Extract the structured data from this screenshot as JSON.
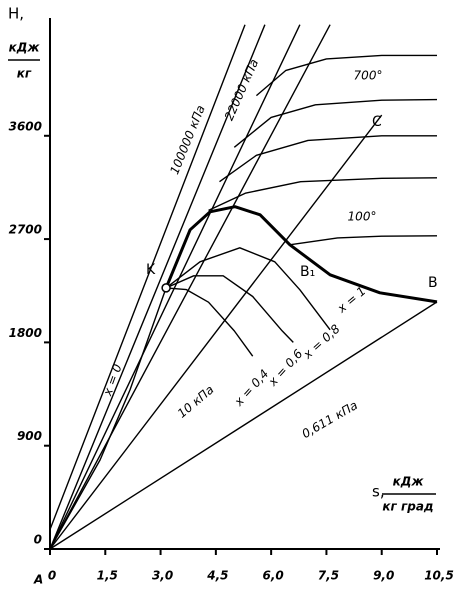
{
  "chart_data": {
    "type": "line",
    "y_label": "H,",
    "y_unit_top": "кДж",
    "y_unit_bottom": "кг",
    "x_label": "s,",
    "x_unit_top": "кДж",
    "x_unit_bottom": "кг град",
    "origin_label": "A",
    "xlim": [
      0,
      10.5
    ],
    "ylim": [
      0,
      4600
    ],
    "xticks": [
      0,
      {
        "value": 1.5,
        "label": "1,5"
      },
      {
        "value": 3.0,
        "label": "3,0"
      },
      {
        "value": 4.5,
        "label": "4,5"
      },
      {
        "value": 6.0,
        "label": "6,0"
      },
      {
        "value": 7.5,
        "label": "7,5"
      },
      {
        "value": 9.0,
        "label": "9,0"
      },
      {
        "value": 10.5,
        "label": "10,5"
      }
    ],
    "yticks": [
      0,
      900,
      1800,
      2700,
      3600
    ],
    "series": [
      {
        "name": "x = 0",
        "color": "#000",
        "x": [
          0,
          1.36,
          2.17,
          3.15
        ],
        "values": [
          0,
          776,
          1386,
          2275
        ]
      },
      {
        "name": "x = 1",
        "color": "#000",
        "x": [
          3.15,
          3.8,
          4.34,
          5.02,
          5.7,
          6.51,
          7.6,
          8.95,
          10.5
        ],
        "values": [
          2275,
          2781,
          2938,
          2982,
          2912,
          2650,
          2389,
          2232,
          2153
        ]
      },
      {
        "name": "x = 0,8",
        "color": "#000",
        "x": [
          3.15,
          4.07,
          5.15,
          6.1,
          6.78,
          7.6
        ],
        "values": [
          2275,
          2502,
          2624,
          2502,
          2258,
          1910
        ]
      },
      {
        "name": "x = 0,6",
        "color": "#000",
        "x": [
          3.15,
          3.9,
          4.7,
          5.5,
          6.3,
          6.6
        ],
        "values": [
          2275,
          2380,
          2380,
          2200,
          1900,
          1800
        ]
      },
      {
        "name": "x = 0,4",
        "color": "#000",
        "x": [
          3.15,
          3.7,
          4.3,
          5.0,
          5.5
        ],
        "values": [
          2275,
          2260,
          2150,
          1900,
          1680
        ]
      },
      {
        "name": "100000 кПа",
        "color": "#000",
        "x": [
          0,
          5.29
        ],
        "values": [
          170,
          4568
        ]
      },
      {
        "name": "22000 кПа",
        "color": "#000",
        "x": [
          0,
          5.83
        ],
        "values": [
          0,
          4568
        ]
      },
      {
        "color": "#000",
        "x": [
          0,
          6.78
        ],
        "values": [
          0,
          4568
        ]
      },
      {
        "color": "#000",
        "x": [
          0,
          7.6
        ],
        "values": [
          0,
          4568
        ]
      },
      {
        "name": "10 кПа",
        "color": "#000",
        "x": [
          0,
          9.0
        ],
        "values": [
          0,
          3780
        ]
      },
      {
        "name": "0,611 кПа",
        "color": "#000",
        "x": [
          0,
          10.5
        ],
        "values": [
          0,
          2153
        ]
      },
      {
        "name": "700°",
        "color": "#000",
        "x": [
          5.6,
          6.4,
          7.5,
          9,
          10.5
        ],
        "values": [
          3950,
          4170,
          4270,
          4300,
          4300
        ]
      },
      {
        "color": "#000",
        "x": [
          5.0,
          6.0,
          7.2,
          9,
          10.5
        ],
        "values": [
          3500,
          3760,
          3870,
          3910,
          3915
        ]
      },
      {
        "color": "#000",
        "x": [
          4.6,
          5.6,
          7.0,
          9,
          10.5
        ],
        "values": [
          3200,
          3430,
          3560,
          3600,
          3600
        ]
      },
      {
        "color": "#000",
        "x": [
          4.3,
          5.3,
          6.8,
          9,
          10.5
        ],
        "values": [
          2950,
          3100,
          3200,
          3230,
          3234
        ]
      },
      {
        "name": "100°",
        "color": "#000",
        "x": [
          6.5,
          7.8,
          9,
          10.5
        ],
        "values": [
          2650,
          2710,
          2725,
          2729
        ]
      }
    ],
    "annotations": [
      "K",
      "B₁",
      "B",
      "C"
    ]
  }
}
